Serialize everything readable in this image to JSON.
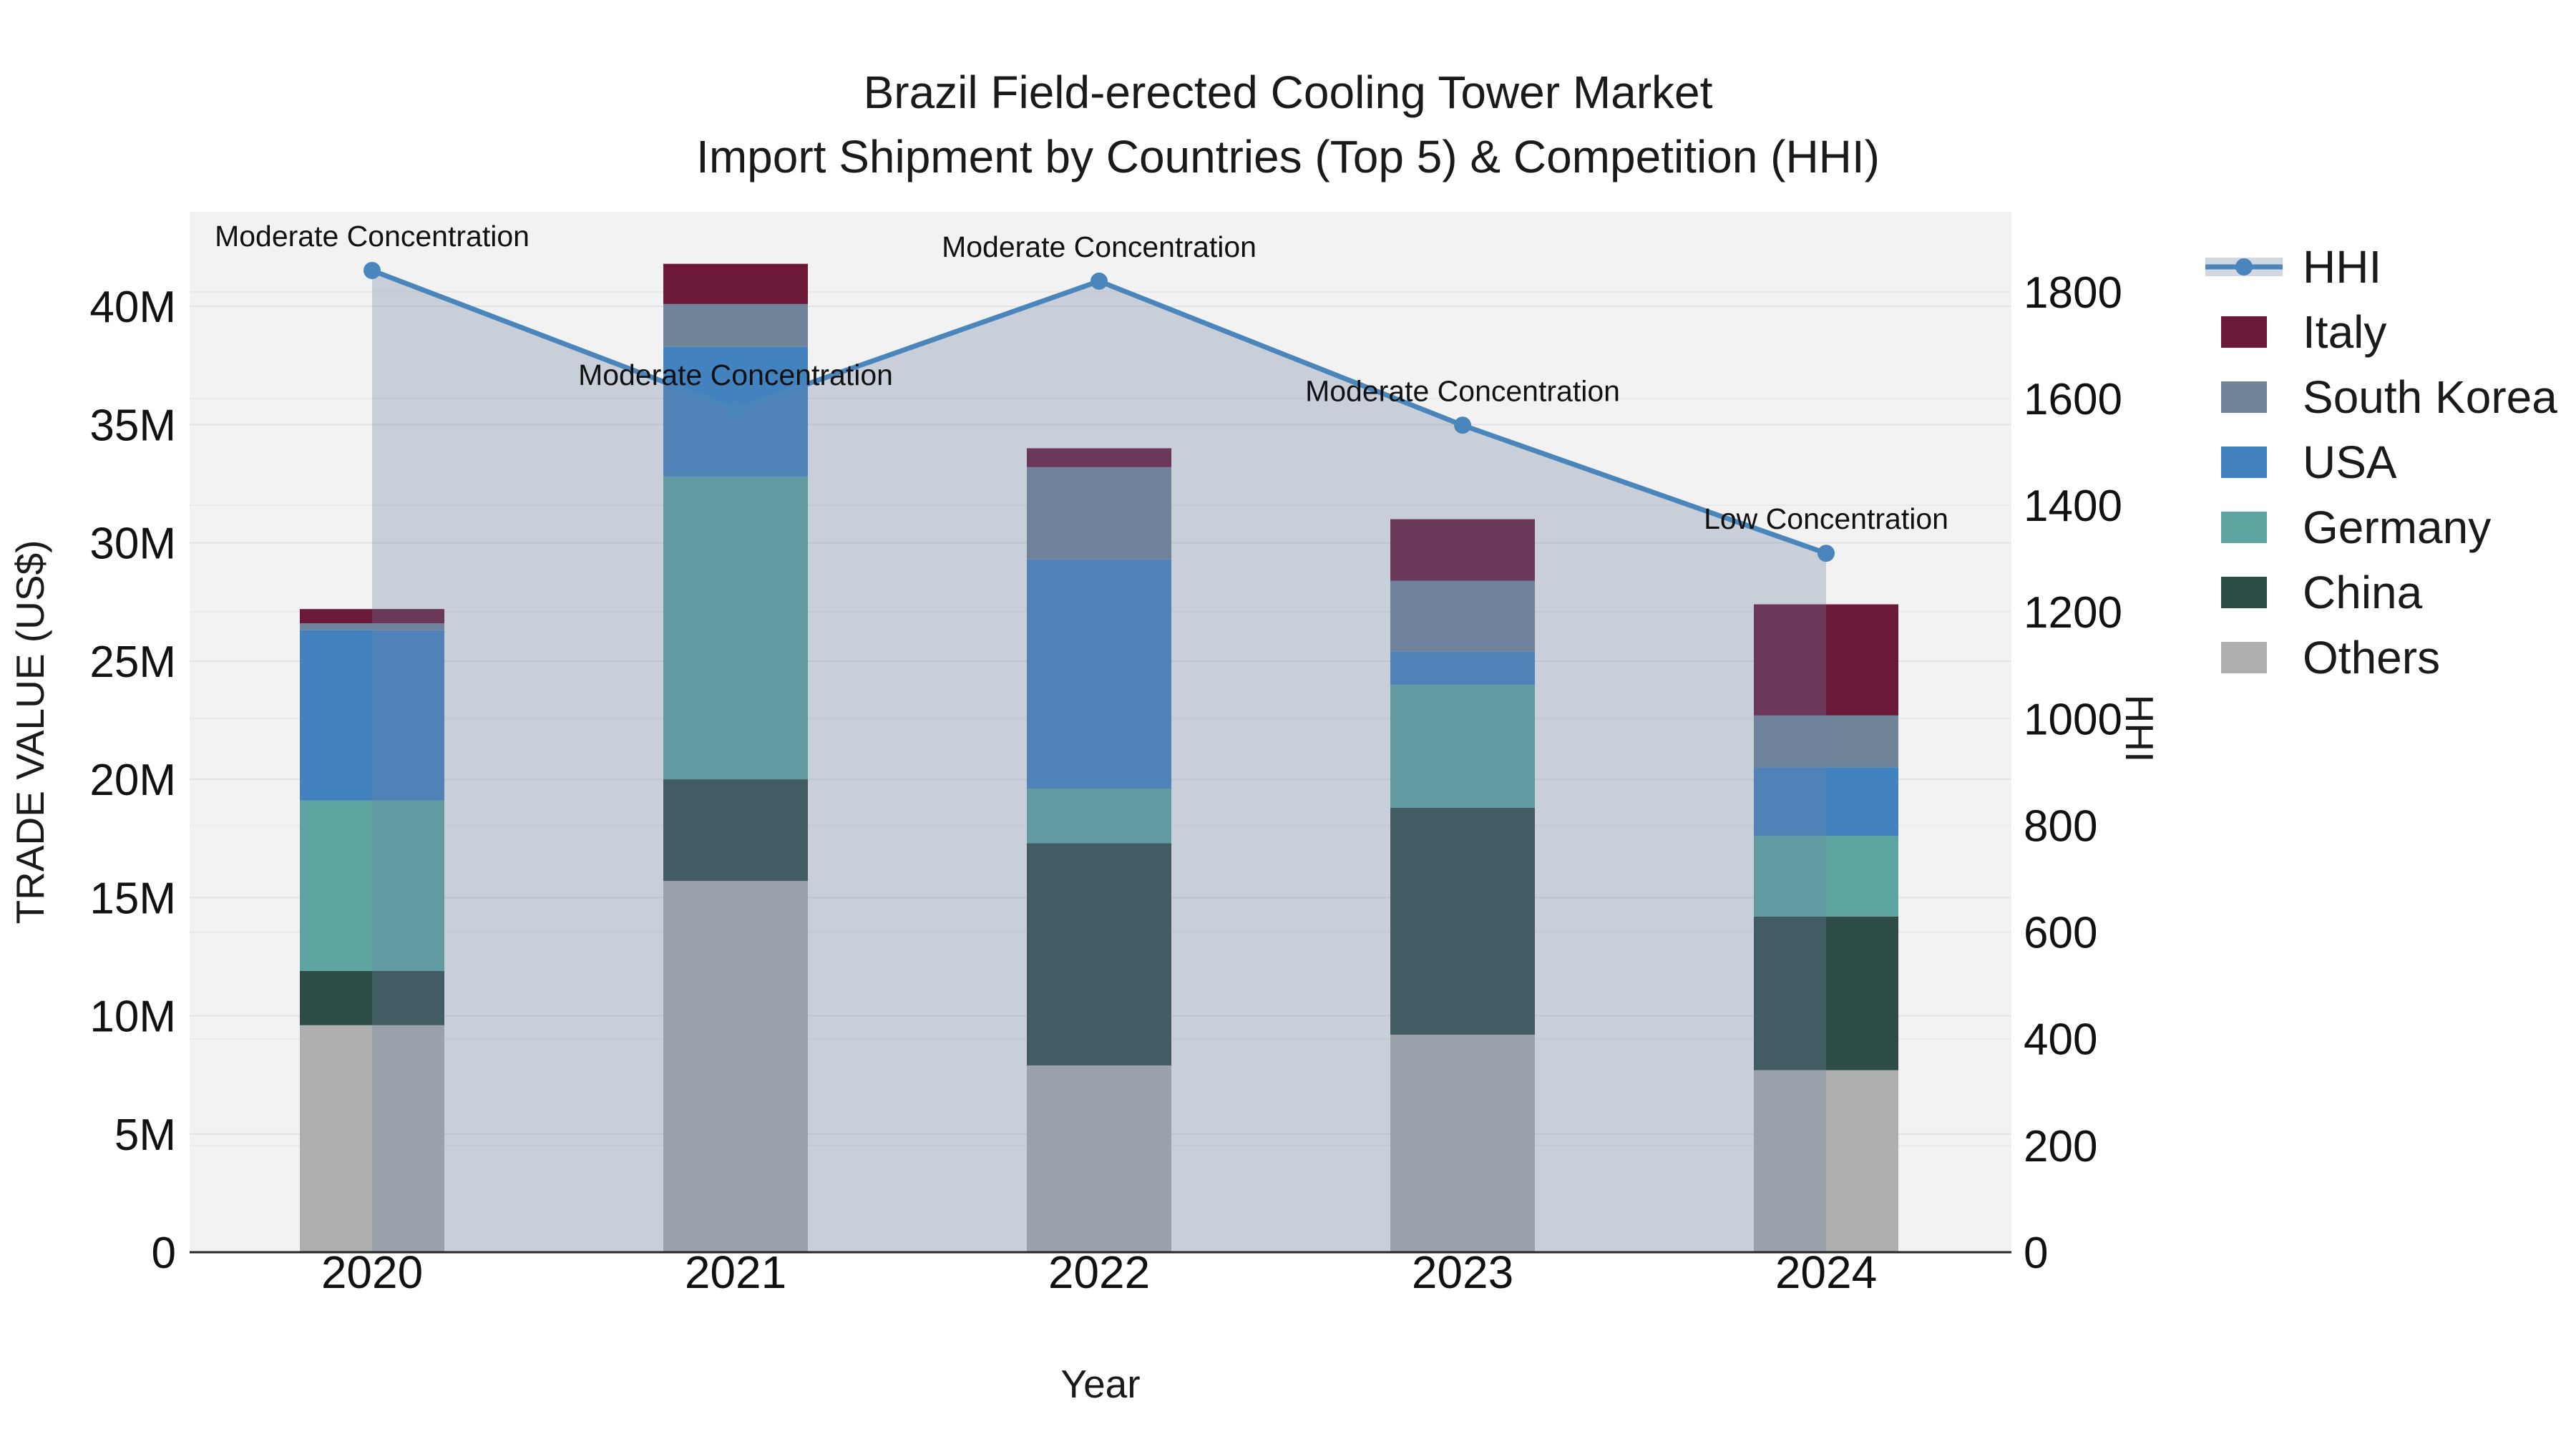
{
  "title": {
    "line1": "Brazil Field-erected Cooling Tower Market",
    "line2": "Import Shipment by Countries (Top 5) & Competition (HHI)"
  },
  "axes": {
    "x_title": "Year",
    "left_title": "TRADE VALUE (US$)",
    "right_title": "HHI",
    "left_tick_labels": [
      "0",
      "5M",
      "10M",
      "15M",
      "20M",
      "25M",
      "30M",
      "35M",
      "40M"
    ],
    "right_tick_labels": [
      "0",
      "200",
      "400",
      "600",
      "800",
      "1000",
      "1200",
      "1400",
      "1600",
      "1800"
    ]
  },
  "chart_data": {
    "type": "bar",
    "subtype": "stacked-bars-with-hhi-line",
    "title": "Brazil Field-erected Cooling Tower Market — Import Shipment by Countries (Top 5) & Competition (HHI)",
    "categories": [
      "2020",
      "2021",
      "2022",
      "2023",
      "2024"
    ],
    "bar_unit": "USD millions",
    "stack_order_bottom_to_top": [
      "Others",
      "China",
      "Germany",
      "USA",
      "South Korea",
      "Italy"
    ],
    "series": [
      {
        "name": "Others",
        "color": "#aeb0b0",
        "values": [
          9.6,
          15.7,
          7.9,
          9.2,
          7.7
        ]
      },
      {
        "name": "China",
        "color": "#2e4c47",
        "values": [
          2.3,
          4.3,
          9.4,
          9.6,
          6.5
        ]
      },
      {
        "name": "Germany",
        "color": "#5ea5a2",
        "values": [
          7.2,
          12.8,
          2.3,
          5.2,
          3.4
        ]
      },
      {
        "name": "USA",
        "color": "#4283bf",
        "values": [
          7.2,
          5.5,
          9.7,
          1.4,
          2.9
        ]
      },
      {
        "name": "South Korea",
        "color": "#71859a",
        "values": [
          0.3,
          1.8,
          3.9,
          3.0,
          2.2
        ]
      },
      {
        "name": "Italy",
        "color": "#6b1839",
        "values": [
          0.6,
          1.7,
          0.8,
          2.6,
          4.7
        ]
      }
    ],
    "bar_totals_musd": [
      27.2,
      41.8,
      34.0,
      31.0,
      27.4
    ],
    "line_series": {
      "name": "HHI",
      "color": "#4a86bb",
      "area_fill": "rgba(110,130,160,0.31)",
      "values": [
        1840,
        1580,
        1820,
        1550,
        1310
      ]
    },
    "annotations": [
      {
        "x": "2020",
        "text": "Moderate Concentration"
      },
      {
        "x": "2021",
        "text": "Moderate Concentration"
      },
      {
        "x": "2022",
        "text": "Moderate Concentration"
      },
      {
        "x": "2023",
        "text": "Moderate Concentration"
      },
      {
        "x": "2024",
        "text": "Low Concentration"
      }
    ],
    "xlabel": "Year",
    "ylabel_left": "TRADE VALUE (US$)",
    "ylabel_right": "HHI",
    "ylim_left_musd": [
      0,
      44
    ],
    "ylim_right_hhi": [
      0,
      1950
    ],
    "grid": true,
    "legend_position": "right",
    "legend_order": [
      "HHI",
      "Italy",
      "South Korea",
      "USA",
      "Germany",
      "China",
      "Others"
    ]
  },
  "style": {
    "plot_bg": "#f2f2f2",
    "figure_bg": "#ffffff",
    "grid_color_left": "#e2e2e2",
    "grid_color_right": "#e9e9e9",
    "axis_line_color": "#262626",
    "text_color": "#111111"
  }
}
